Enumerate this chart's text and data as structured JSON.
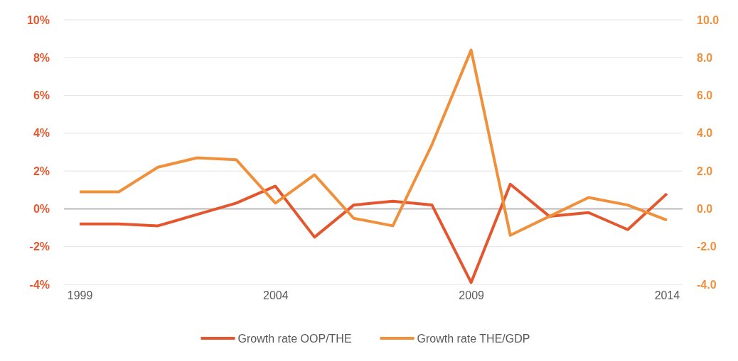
{
  "chart_data": {
    "type": "line",
    "x": [
      1999,
      2000,
      2001,
      2002,
      2003,
      2004,
      2005,
      2006,
      2007,
      2008,
      2009,
      2010,
      2011,
      2012,
      2013,
      2014
    ],
    "xlim": [
      1998.6,
      2014.4
    ],
    "xticks": [
      1999,
      2004,
      2009,
      2014
    ],
    "ylim": [
      -4,
      10
    ],
    "yticks": [
      {
        "value": -4,
        "label": "-4%"
      },
      {
        "value": -2,
        "label": "-2%"
      },
      {
        "value": 0,
        "label": "0%"
      },
      {
        "value": 2,
        "label": "2%"
      },
      {
        "value": 4,
        "label": "4%"
      },
      {
        "value": 6,
        "label": "6%"
      },
      {
        "value": 8,
        "label": "8%"
      },
      {
        "value": 10,
        "label": "10%"
      }
    ],
    "y2lim": [
      -4,
      10
    ],
    "y2ticks": [
      {
        "value": -4,
        "label": "-4.0"
      },
      {
        "value": -2,
        "label": "-2.0"
      },
      {
        "value": 0,
        "label": "0.0"
      },
      {
        "value": 2,
        "label": "2.0"
      },
      {
        "value": 4,
        "label": "4.0"
      },
      {
        "value": 6,
        "label": "6.0"
      },
      {
        "value": 8,
        "label": "8.0"
      },
      {
        "value": 10,
        "label": "10.0"
      }
    ],
    "series": [
      {
        "name": "Growth rate OOP/THE",
        "color": "#e4572e",
        "values": [
          -0.8,
          -0.8,
          -0.9,
          -0.3,
          0.3,
          1.2,
          -1.5,
          0.2,
          0.4,
          0.2,
          -3.9,
          1.3,
          -0.4,
          -0.2,
          -1.1,
          0.8
        ]
      },
      {
        "name": "Growth rate THE/GDP",
        "color": "#f0903a",
        "axis": "y2",
        "values": [
          0.9,
          0.9,
          2.2,
          2.7,
          2.6,
          0.3,
          1.8,
          -0.5,
          -0.9,
          3.4,
          8.4,
          -1.4,
          -0.4,
          0.6,
          0.2,
          -0.6
        ]
      }
    ],
    "ref_lines": [
      {
        "axis": "y",
        "value": 0,
        "color": "#bbbbbb"
      }
    ],
    "grid": "y",
    "legend": "bottom",
    "marker": "none",
    "line_style": "solid"
  }
}
